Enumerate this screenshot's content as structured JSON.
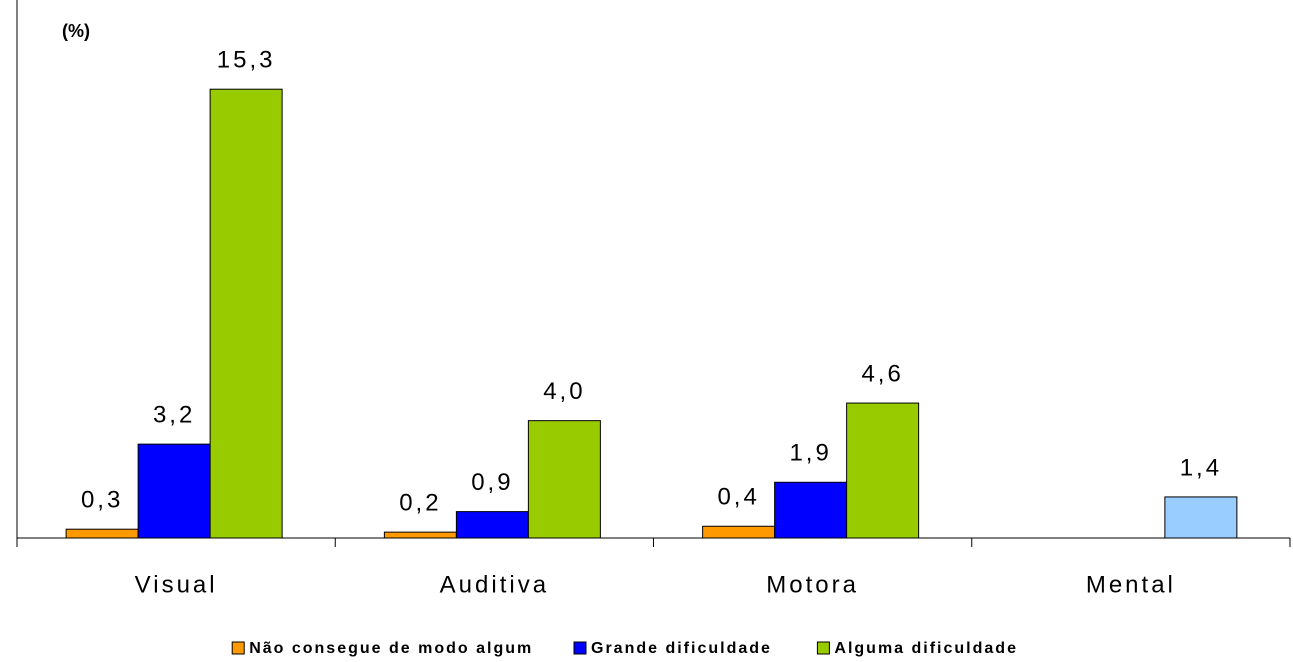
{
  "chart_data": {
    "type": "bar",
    "y_label": "(%)",
    "categories": [
      "Visual",
      "Auditiva",
      "Motora",
      "Mental"
    ],
    "series": [
      {
        "name": "Não consegue de modo algum",
        "color": "#ff9900",
        "values": [
          0.3,
          0.2,
          0.4,
          null
        ],
        "value_labels": [
          "0,3",
          "0,2",
          "0,4",
          null
        ]
      },
      {
        "name": "Grande dificuldade",
        "color": "#0000ff",
        "values": [
          3.2,
          0.9,
          1.9,
          null
        ],
        "value_labels": [
          "3,2",
          "0,9",
          "1,9",
          null
        ]
      },
      {
        "name": "Alguma dificuldade",
        "color": "#99cc00",
        "colors": [
          "#99cc00",
          "#99cc00",
          "#99cc00",
          "#99ccff"
        ],
        "values": [
          15.3,
          4.0,
          4.6,
          1.4
        ],
        "value_labels": [
          "15,3",
          "4,0",
          "4,6",
          "1,4"
        ]
      }
    ],
    "ylim": [
      0,
      18
    ],
    "legend": "bottom"
  }
}
